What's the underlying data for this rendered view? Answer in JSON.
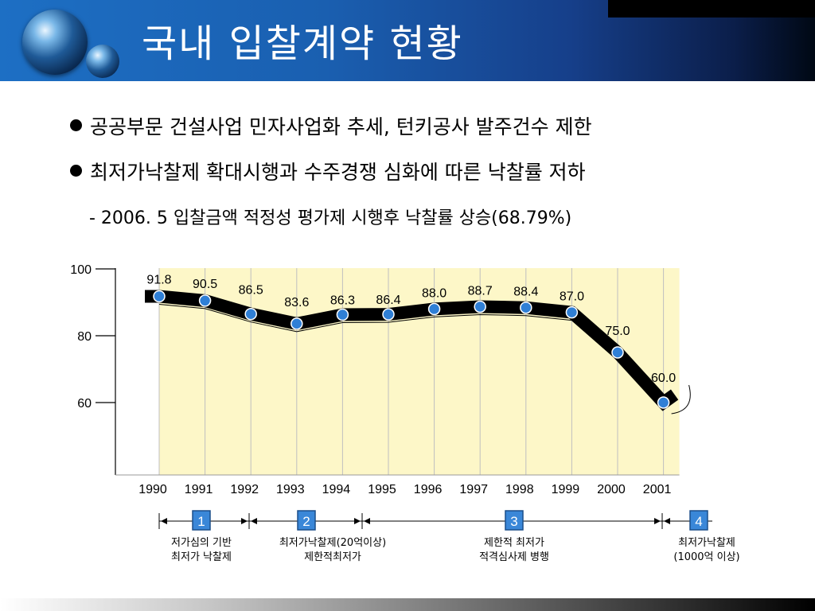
{
  "slide": {
    "title": "국내 입찰계약 현황",
    "bullets": [
      "공공부문 건설사업 민자사업화 추세, 턴키공사 발주건수 제한",
      "최저가낙찰제 확대시행과 수주경쟁 심화에 따른 낙찰률 저하"
    ],
    "subline": "- 2006. 5 입찰금액 적정성 평가제 시행후 낙찰률 상승(68.79%)"
  },
  "chart_data": {
    "type": "line",
    "categories": [
      "1990",
      "1991",
      "1992",
      "1993",
      "1994",
      "1995",
      "1996",
      "1997",
      "1998",
      "1999",
      "2000",
      "2001"
    ],
    "values": [
      91.8,
      90.5,
      86.5,
      83.6,
      86.3,
      86.4,
      88.0,
      88.7,
      88.4,
      87.0,
      75.0,
      60.0
    ],
    "value_labels": [
      "91.8",
      "90.5",
      "86.5",
      "83.6",
      "86.3",
      "86.4",
      "88.0",
      "88.7",
      "88.4",
      "87.0",
      "75.0",
      "60.0"
    ],
    "y_ticks": [
      "100",
      "80",
      "60"
    ],
    "ylim": [
      40,
      100
    ],
    "colors": {
      "line": "#000000",
      "marker": "#2f7fd6",
      "band": "#fdf7c8"
    },
    "phases": [
      {
        "number": "1",
        "lines": [
          "저가심의 기반",
          "최저가 낙찰제"
        ]
      },
      {
        "number": "2",
        "lines": [
          "최저가낙찰제(20억이상)",
          "제한적최저가"
        ]
      },
      {
        "number": "3",
        "lines": [
          "제한적 최저가",
          "적격심사제 병행"
        ]
      },
      {
        "number": "4",
        "lines": [
          "최저가낙찰제",
          "(1000억 이상)"
        ]
      }
    ]
  }
}
